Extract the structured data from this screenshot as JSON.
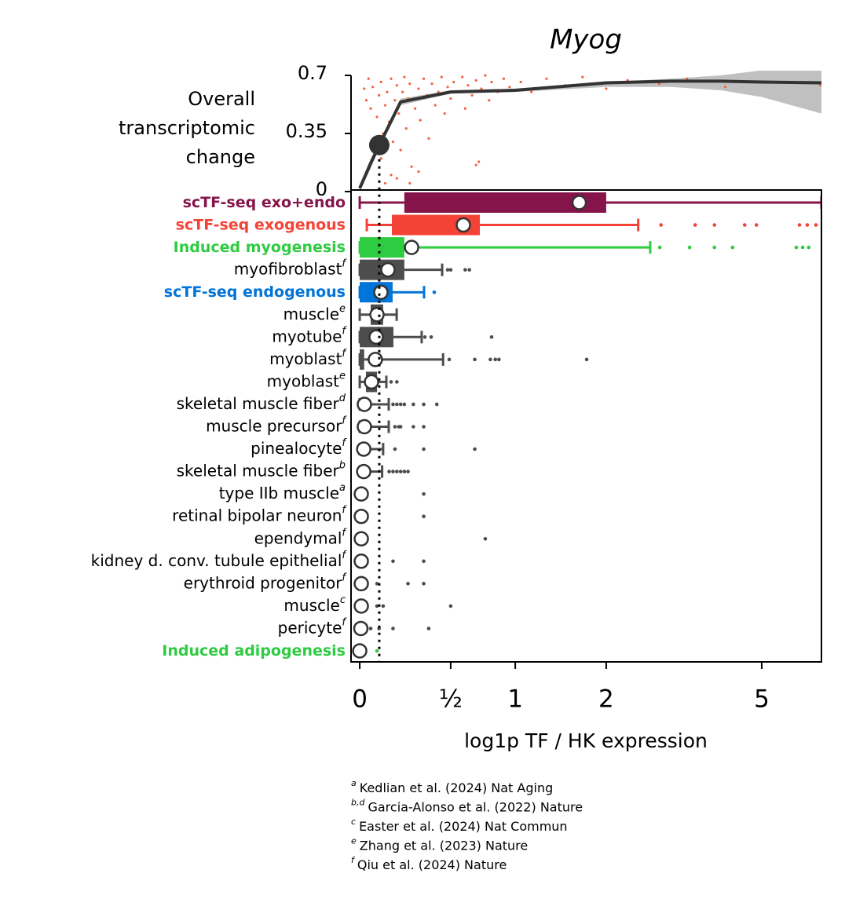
{
  "chart_data": [
    {
      "type": "scatter",
      "title": "Myog",
      "ylabel": "Overall transcriptomic change",
      "ylim": [
        0,
        0.7
      ],
      "yticks": [
        0,
        0.35,
        0.7
      ],
      "xlim": [
        -0.038,
        6.83
      ],
      "xscale": "log1p",
      "points": {
        "color": "#f4623a",
        "x": [
          0.02,
          0.03,
          0.04,
          0.05,
          0.06,
          0.07,
          0.08,
          0.09,
          0.1,
          0.1,
          0.11,
          0.12,
          0.13,
          0.14,
          0.15,
          0.15,
          0.16,
          0.17,
          0.18,
          0.19,
          0.2,
          0.21,
          0.22,
          0.23,
          0.24,
          0.25,
          0.26,
          0.28,
          0.3,
          0.31,
          0.33,
          0.35,
          0.36,
          0.38,
          0.4,
          0.42,
          0.44,
          0.46,
          0.48,
          0.5,
          0.52,
          0.55,
          0.58,
          0.6,
          0.62,
          0.65,
          0.68,
          0.7,
          0.72,
          0.75,
          0.78,
          0.8,
          0.85,
          0.9,
          0.95,
          1.05,
          1.15,
          1.3,
          1.5,
          1.7,
          2.0,
          2.3,
          2.8,
          3.3,
          4.1,
          6.8,
          0.12,
          0.18,
          0.3,
          0.25,
          0.68
        ],
        "y": [
          0.62,
          0.55,
          0.68,
          0.5,
          0.63,
          0.3,
          0.45,
          0.58,
          0.66,
          0.2,
          0.35,
          0.52,
          0.6,
          0.42,
          0.68,
          0.1,
          0.3,
          0.55,
          0.64,
          0.47,
          0.25,
          0.6,
          0.69,
          0.38,
          0.56,
          0.65,
          0.15,
          0.5,
          0.62,
          0.43,
          0.68,
          0.58,
          0.32,
          0.65,
          0.52,
          0.6,
          0.69,
          0.47,
          0.63,
          0.56,
          0.66,
          0.6,
          0.69,
          0.5,
          0.64,
          0.58,
          0.67,
          0.18,
          0.62,
          0.7,
          0.55,
          0.66,
          0.6,
          0.68,
          0.63,
          0.66,
          0.6,
          0.68,
          0.64,
          0.69,
          0.62,
          0.67,
          0.65,
          0.68,
          0.63,
          0.64,
          0.05,
          0.08,
          0.12,
          0.05,
          0.16
        ]
      },
      "fit": {
        "color": "#333333",
        "band_color": "#c0c0c0",
        "x": [
          0,
          0.05,
          0.091,
          0.2,
          0.5,
          1,
          2,
          3,
          4,
          5,
          6.83
        ],
        "y": [
          0.02,
          0.17,
          0.28,
          0.54,
          0.6,
          0.61,
          0.655,
          0.665,
          0.665,
          0.66,
          0.655
        ],
        "lower": [
          0,
          0.14,
          0.26,
          0.52,
          0.59,
          0.6,
          0.63,
          0.63,
          0.61,
          0.57,
          0.47
        ],
        "upper": [
          0.04,
          0.2,
          0.3,
          0.56,
          0.61,
          0.62,
          0.66,
          0.68,
          0.7,
          0.73,
          0.8
        ]
      },
      "highlight": {
        "x": 0.091,
        "y": 0.28
      }
    },
    {
      "type": "box",
      "xlabel": "log1p TF / HK expression",
      "xlim": [
        -0.038,
        6.83
      ],
      "xscale": "log1p",
      "xticks": [
        0,
        {
          "value": 0.5,
          "label": "½"
        },
        1,
        2,
        5
      ],
      "reference_x": 0.091,
      "rows": [
        {
          "label": "scTF-seq exo+endo",
          "color": "#85144b",
          "label_color": "#85144b",
          "bold": true,
          "whislo": 0,
          "q1": 0.22,
          "q3": 2,
          "whishi": 6.83,
          "mean": 1.66,
          "outliers": []
        },
        {
          "label": "scTF-seq exogenous",
          "color": "#f44336",
          "label_color": "#f44336",
          "bold": true,
          "whislo": 0.032,
          "q1": 0.154,
          "q3": 0.708,
          "whishi": 2.46,
          "mean": 0.587,
          "outliers": [
            2.83,
            3.46,
            3.86,
            4.56,
            4.86,
            6.1,
            6.35,
            6.64
          ]
        },
        {
          "label": "Induced myogenesis",
          "color": "#2ecc40",
          "label_color": "#2ecc40",
          "bold": true,
          "whislo": 0,
          "q1": 0,
          "q3": 0.22,
          "whishi": 2.65,
          "mean": 0.26,
          "outliers": [
            2.81,
            3.35,
            3.86,
            4.27,
            6.0,
            6.2,
            6.4
          ]
        },
        {
          "label": "myofibroblast",
          "sup": "f",
          "color": "#4d4d4d",
          "whislo": 0,
          "q1": 0,
          "q3": 0.22,
          "whishi": 0.444,
          "mean": 0.134,
          "outliers": [
            0.48,
            0.5,
            0.6,
            0.63
          ]
        },
        {
          "label": "scTF-seq endogenous",
          "color": "#0074d9",
          "label_color": "#0074d9",
          "bold": true,
          "whislo": 0,
          "q1": 0,
          "q3": 0.158,
          "whishi": 0.332,
          "mean": 0.099,
          "outliers": [
            0.394
          ]
        },
        {
          "label": "muscle",
          "sup": "e",
          "color": "#4d4d4d",
          "whislo": 0,
          "q1": 0.05,
          "q3": 0.11,
          "whishi": 0.179,
          "mean": 0.08,
          "outliers": []
        },
        {
          "label": "myotube",
          "sup": "f",
          "color": "#4d4d4d",
          "whislo": 0,
          "q1": 0,
          "q3": 0.162,
          "whishi": 0.318,
          "mean": 0.076,
          "outliers": [
            0.337,
            0.375,
            0.8
          ]
        },
        {
          "label": "myoblast",
          "sup": "f",
          "color": "#4d4d4d",
          "whislo": 0,
          "q1": 0,
          "q3": 0.02,
          "whishi": 0.45,
          "mean": 0.072,
          "outliers": [
            0.49,
            0.67,
            0.79,
            0.83,
            0.86,
            1.75
          ]
        },
        {
          "label": "myoblast",
          "sup": "e",
          "color": "#4d4d4d",
          "whislo": 0,
          "q1": 0.028,
          "q3": 0.08,
          "whishi": 0.126,
          "mean": 0.054,
          "outliers": [
            0.15,
            0.18
          ]
        },
        {
          "label": "skeletal muscle fiber",
          "sup": "d",
          "color": "#4d4d4d",
          "whislo": 0,
          "whishi": 0.138,
          "mean": 0.021,
          "outliers": [
            0.16,
            0.18,
            0.2,
            0.22,
            0.27,
            0.33,
            0.41
          ]
        },
        {
          "label": "muscle precursor",
          "sup": "f",
          "color": "#4d4d4d",
          "whislo": 0,
          "whishi": 0.138,
          "mean": 0.021,
          "outliers": [
            0.17,
            0.19,
            0.2,
            0.27,
            0.33
          ]
        },
        {
          "label": "pinealocyte",
          "sup": "f",
          "color": "#4d4d4d",
          "whislo": 0,
          "whishi": 0.11,
          "mean": 0.018,
          "outliers": [
            0.17,
            0.33,
            0.67
          ]
        },
        {
          "label": "skeletal muscle fiber",
          "sup": "b",
          "color": "#4d4d4d",
          "whislo": 0,
          "whishi": 0.105,
          "mean": 0.018,
          "outliers": [
            0.14,
            0.16,
            0.18,
            0.2,
            0.22,
            0.24
          ]
        },
        {
          "label": "type IIb muscle",
          "sup": "a",
          "color": "#4d4d4d",
          "mean": 0.007,
          "outliers": [
            0.33
          ]
        },
        {
          "label": "retinal bipolar neuron",
          "sup": "f",
          "color": "#4d4d4d",
          "mean": 0.007,
          "outliers": [
            0.33
          ]
        },
        {
          "label": "ependymal",
          "sup": "f",
          "color": "#4d4d4d",
          "mean": 0.007,
          "outliers": [
            0.75
          ]
        },
        {
          "label": "kidney d. conv. tubule epithelial",
          "sup": "f",
          "color": "#4d4d4d",
          "mean": 0.007,
          "outliers": [
            0.16,
            0.33
          ]
        },
        {
          "label": "erythroid progenitor",
          "sup": "f",
          "color": "#4d4d4d",
          "mean": 0.007,
          "outliers": [
            0.08,
            0.24,
            0.33
          ]
        },
        {
          "label": "muscle",
          "sup": "c",
          "color": "#4d4d4d",
          "mean": 0.007,
          "outliers": [
            0.08,
            0.11,
            0.5
          ]
        },
        {
          "label": "pericyte",
          "sup": "f",
          "color": "#4d4d4d",
          "mean": 0.005,
          "outliers": [
            0.05,
            0.09,
            0.16,
            0.36
          ]
        },
        {
          "label": "Induced adipogenesis",
          "color": "#2ecc40",
          "label_color": "#2ecc40",
          "bold": true,
          "mean": 0,
          "outliers": [
            0.08
          ]
        }
      ]
    }
  ],
  "footnotes": [
    {
      "sup": "a",
      "text": "Kedlian et al. (2024) Nat Aging"
    },
    {
      "sup": "b,d",
      "text": "Garcia-Alonso et al. (2022) Nature"
    },
    {
      "sup": "c",
      "text": "Easter et al. (2024) Nat Commun"
    },
    {
      "sup": "e",
      "text": "Zhang et al. (2023) Nature"
    },
    {
      "sup": "f",
      "text": "Qiu et al. (2024) Nature"
    }
  ]
}
